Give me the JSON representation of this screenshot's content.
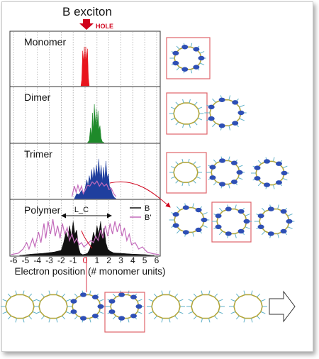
{
  "chart_data": {
    "type": "area",
    "title": "B exciton",
    "hole_label": "HOLE",
    "xlabel": "Electron position (# monomer units)",
    "x_ticks": [
      "-6",
      "-5",
      "-4",
      "-3",
      "-2",
      "-1",
      "0",
      "1",
      "2",
      "3",
      "4",
      "5",
      "6"
    ],
    "xlim": [
      -6.3,
      6.3
    ],
    "grid": "dotted vertical",
    "legend": {
      "position": "top-right",
      "entries": [
        "B",
        "B'"
      ]
    },
    "annotation": "L_C",
    "panels": [
      {
        "name": "Monomer",
        "series": [
          {
            "name": "B",
            "color": "#e8141c",
            "points": [
              [
                -0.35,
                0
              ],
              [
                -0.28,
                0.15
              ],
              [
                -0.2,
                0.85
              ],
              [
                -0.13,
                0.6
              ],
              [
                -0.06,
                0.95
              ],
              [
                0,
                0.5
              ],
              [
                0.06,
                0.95
              ],
              [
                0.13,
                0.6
              ],
              [
                0.2,
                0.9
              ],
              [
                0.28,
                0.2
              ],
              [
                0.35,
                0
              ]
            ]
          }
        ]
      },
      {
        "name": "Dimer",
        "series": [
          {
            "name": "B",
            "color": "#1e8a2a",
            "points": [
              [
                0.2,
                0
              ],
              [
                0.35,
                0.05
              ],
              [
                0.45,
                0.35
              ],
              [
                0.55,
                0.15
              ],
              [
                0.62,
                0.7
              ],
              [
                0.7,
                0.3
              ],
              [
                0.78,
                0.9
              ],
              [
                0.86,
                0.4
              ],
              [
                0.93,
                0.8
              ],
              [
                1.0,
                0.35
              ],
              [
                1.08,
                0.75
              ],
              [
                1.16,
                0.3
              ],
              [
                1.25,
                0.4
              ],
              [
                1.35,
                0.1
              ],
              [
                1.45,
                0.02
              ],
              [
                1.6,
                0
              ]
            ]
          }
        ]
      },
      {
        "name": "Trimer",
        "series": [
          {
            "name": "B",
            "color": "#1f3f9e",
            "points": [
              [
                -0.9,
                0
              ],
              [
                -0.7,
                0.12
              ],
              [
                -0.5,
                0.1
              ],
              [
                -0.3,
                0.2
              ],
              [
                -0.15,
                0.1
              ],
              [
                0,
                0.25
              ],
              [
                0.15,
                0.45
              ],
              [
                0.25,
                0.3
              ],
              [
                0.35,
                0.55
              ],
              [
                0.45,
                0.4
              ],
              [
                0.55,
                0.7
              ],
              [
                0.65,
                0.45
              ],
              [
                0.75,
                0.75
              ],
              [
                0.85,
                0.5
              ],
              [
                0.95,
                0.8
              ],
              [
                1.05,
                0.55
              ],
              [
                1.15,
                0.95
              ],
              [
                1.25,
                0.5
              ],
              [
                1.35,
                0.8
              ],
              [
                1.45,
                0.4
              ],
              [
                1.55,
                0.75
              ],
              [
                1.65,
                0.45
              ],
              [
                1.75,
                0.9
              ],
              [
                1.85,
                0.5
              ],
              [
                1.95,
                0.6
              ],
              [
                2.05,
                0.3
              ],
              [
                2.15,
                0.25
              ],
              [
                2.3,
                0.1
              ],
              [
                2.45,
                0.03
              ],
              [
                2.6,
                0
              ]
            ]
          },
          {
            "name": "B'",
            "color": "#c36bbb",
            "points": [
              [
                -1.1,
                0.05
              ],
              [
                -0.9,
                0.3
              ],
              [
                -0.75,
                0.15
              ],
              [
                -0.6,
                0.32
              ],
              [
                -0.45,
                0.18
              ],
              [
                -0.3,
                0.3
              ],
              [
                -0.15,
                0.12
              ],
              [
                0,
                0.2
              ],
              [
                0.2,
                0.32
              ],
              [
                0.4,
                0.3
              ],
              [
                0.6,
                0.4
              ],
              [
                0.8,
                0.35
              ],
              [
                1.0,
                0.42
              ],
              [
                1.2,
                0.3
              ],
              [
                1.4,
                0.38
              ],
              [
                1.6,
                0.3
              ],
              [
                1.8,
                0.35
              ],
              [
                2.0,
                0.22
              ],
              [
                2.2,
                0.25
              ],
              [
                2.4,
                0.12
              ],
              [
                2.6,
                0.05
              ]
            ]
          }
        ]
      },
      {
        "name": "Polymer",
        "series": [
          {
            "name": "B",
            "color": "#111111",
            "points": [
              [
                -5.5,
                0
              ],
              [
                -4.5,
                0.03
              ],
              [
                -3.5,
                0.05
              ],
              [
                -2.6,
                0.08
              ],
              [
                -2.3,
                0.1
              ],
              [
                -2.0,
                0.12
              ],
              [
                -1.8,
                0.3
              ],
              [
                -1.6,
                0.55
              ],
              [
                -1.45,
                0.4
              ],
              [
                -1.3,
                0.7
              ],
              [
                -1.15,
                0.45
              ],
              [
                -1.0,
                0.8
              ],
              [
                -0.85,
                0.5
              ],
              [
                -0.7,
                0.6
              ],
              [
                -0.55,
                0.2
              ],
              [
                -0.4,
                0.05
              ],
              [
                -0.2,
                0.02
              ],
              [
                0,
                0.03
              ],
              [
                0.2,
                0.05
              ],
              [
                0.4,
                0.15
              ],
              [
                0.55,
                0.3
              ],
              [
                0.7,
                0.55
              ],
              [
                0.85,
                0.4
              ],
              [
                1.0,
                0.7
              ],
              [
                1.15,
                0.5
              ],
              [
                1.3,
                0.8
              ],
              [
                1.45,
                0.45
              ],
              [
                1.6,
                0.65
              ],
              [
                1.75,
                0.3
              ],
              [
                1.9,
                0.15
              ],
              [
                2.1,
                0.1
              ],
              [
                2.4,
                0.06
              ],
              [
                3.0,
                0.05
              ],
              [
                4.0,
                0.03
              ],
              [
                5.0,
                0.02
              ],
              [
                5.8,
                0
              ]
            ]
          },
          {
            "name": "B'",
            "color": "#c36bbb",
            "points": [
              [
                -6.2,
                0.02
              ],
              [
                -5.6,
                0.05
              ],
              [
                -5.2,
                0.15
              ],
              [
                -4.9,
                0.3
              ],
              [
                -4.7,
                0.15
              ],
              [
                -4.4,
                0.4
              ],
              [
                -4.2,
                0.2
              ],
              [
                -3.9,
                0.55
              ],
              [
                -3.7,
                0.3
              ],
              [
                -3.45,
                0.75
              ],
              [
                -3.3,
                0.4
              ],
              [
                -3.1,
                0.8
              ],
              [
                -2.9,
                0.5
              ],
              [
                -2.7,
                0.85
              ],
              [
                -2.5,
                0.45
              ],
              [
                -2.3,
                0.7
              ],
              [
                -2.1,
                0.4
              ],
              [
                -1.9,
                0.75
              ],
              [
                -1.7,
                0.5
              ],
              [
                -1.5,
                0.65
              ],
              [
                -1.3,
                0.35
              ],
              [
                -1.1,
                0.5
              ],
              [
                -0.9,
                0.3
              ],
              [
                -0.7,
                0.4
              ],
              [
                -0.5,
                0.25
              ],
              [
                -0.3,
                0.3
              ],
              [
                -0.1,
                0.2
              ],
              [
                0.1,
                0.25
              ],
              [
                0.3,
                0.3
              ],
              [
                0.5,
                0.35
              ],
              [
                0.7,
                0.3
              ],
              [
                0.9,
                0.45
              ],
              [
                1.1,
                0.35
              ],
              [
                1.3,
                0.6
              ],
              [
                1.5,
                0.4
              ],
              [
                1.7,
                0.7
              ],
              [
                1.9,
                0.45
              ],
              [
                2.1,
                0.75
              ],
              [
                2.3,
                0.5
              ],
              [
                2.5,
                0.8
              ],
              [
                2.7,
                0.55
              ],
              [
                2.9,
                0.75
              ],
              [
                3.1,
                0.45
              ],
              [
                3.3,
                0.65
              ],
              [
                3.5,
                0.35
              ],
              [
                3.7,
                0.5
              ],
              [
                3.9,
                0.25
              ],
              [
                4.2,
                0.3
              ],
              [
                4.5,
                0.15
              ],
              [
                4.8,
                0.2
              ],
              [
                5.2,
                0.08
              ],
              [
                5.7,
                0.04
              ],
              [
                6.2,
                0.02
              ]
            ]
          }
        ]
      }
    ]
  }
}
